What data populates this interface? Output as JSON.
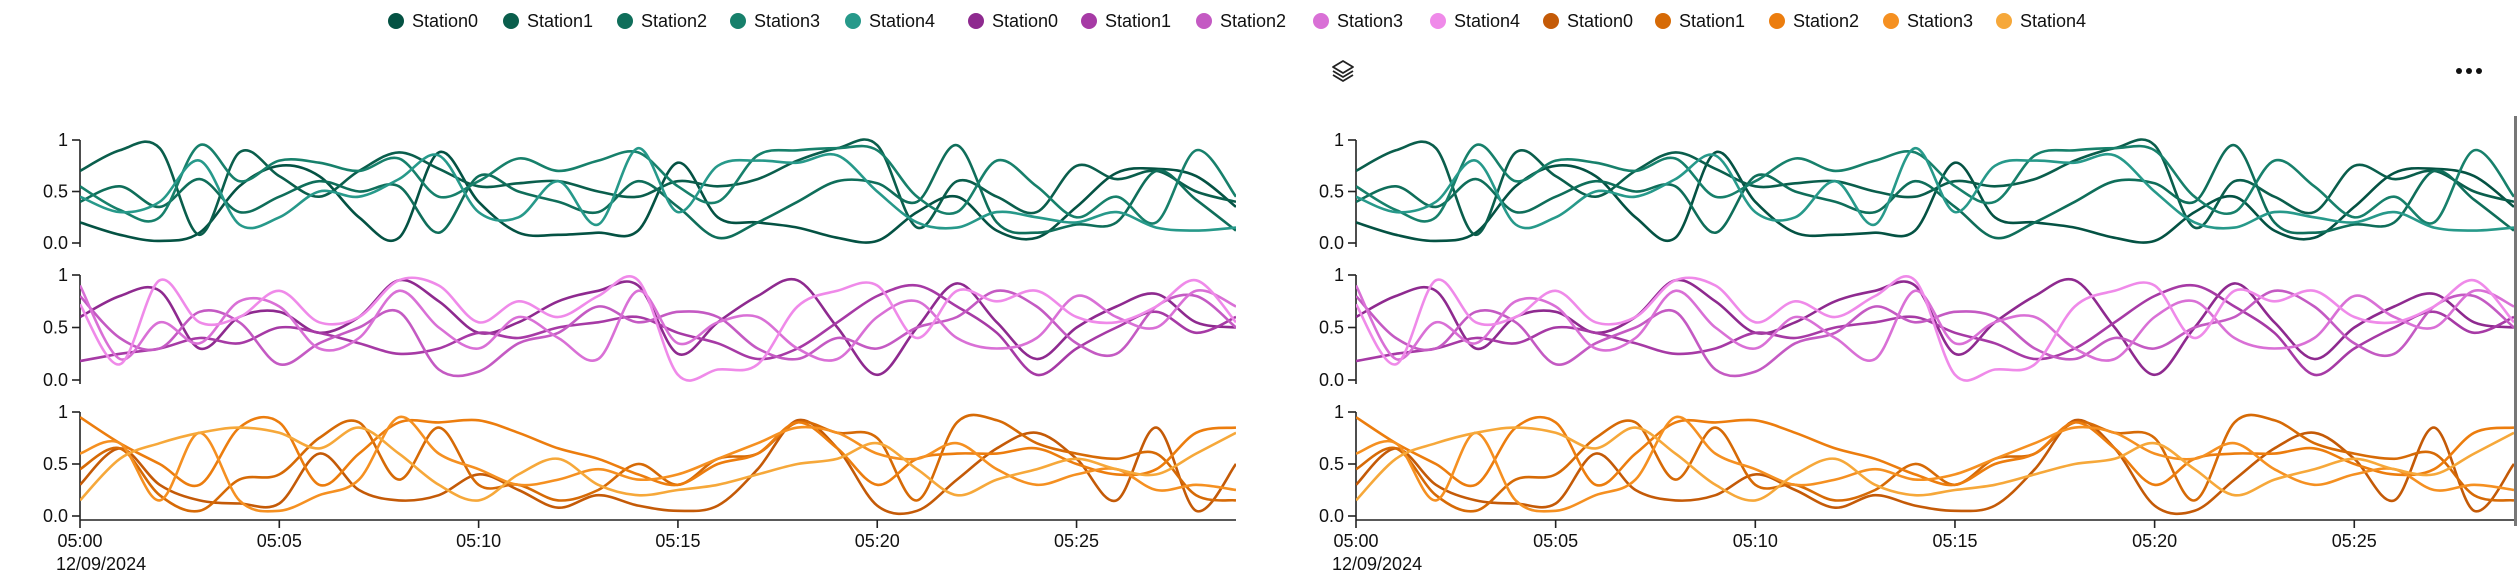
{
  "legend": {
    "groups": [
      {
        "items": [
          {
            "label": "Station0",
            "color": "#045243"
          },
          {
            "label": "Station1",
            "color": "#0a5e4c"
          },
          {
            "label": "Station2",
            "color": "#0f6e5a"
          },
          {
            "label": "Station3",
            "color": "#17806b"
          },
          {
            "label": "Station4",
            "color": "#27998a"
          }
        ]
      },
      {
        "items": [
          {
            "label": "Station0",
            "color": "#8e2a8f"
          },
          {
            "label": "Station1",
            "color": "#a63aa5"
          },
          {
            "label": "Station2",
            "color": "#c45ac3"
          },
          {
            "label": "Station3",
            "color": "#d970d6"
          },
          {
            "label": "Station4",
            "color": "#ef8ae9"
          }
        ]
      },
      {
        "items": [
          {
            "label": "Station0",
            "color": "#c45a07"
          },
          {
            "label": "Station1",
            "color": "#d66a06"
          },
          {
            "label": "Station2",
            "color": "#ec7d0e"
          },
          {
            "label": "Station3",
            "color": "#f59021"
          },
          {
            "label": "Station4",
            "color": "#f6a83a"
          }
        ]
      }
    ]
  },
  "icons": {
    "layers": "layers-icon",
    "more": "more-horizontal-icon"
  },
  "chart_data": {
    "type": "line",
    "x": [
      "05:00",
      "05:01",
      "05:02",
      "05:03",
      "05:04",
      "05:05",
      "05:06",
      "05:07",
      "05:08",
      "05:09",
      "05:10",
      "05:11",
      "05:12",
      "05:13",
      "05:14",
      "05:15",
      "05:16",
      "05:17",
      "05:18",
      "05:19",
      "05:20",
      "05:21",
      "05:22",
      "05:23",
      "05:24",
      "05:25",
      "05:26",
      "05:27",
      "05:28",
      "05:29"
    ],
    "x_ticks": [
      "05:00",
      "05:05",
      "05:10",
      "05:15",
      "05:20",
      "05:25"
    ],
    "x_date_label": "12/09/2024",
    "y_ticks": [
      "0.0",
      "0.5",
      "1"
    ],
    "ylim": [
      0,
      1
    ],
    "grid": false,
    "panels": [
      {
        "series": [
          {
            "name": "Station0",
            "color": "#045243",
            "values": [
              0.2,
              0.08,
              0.02,
              0.1,
              0.55,
              0.75,
              0.65,
              0.25,
              0.05,
              0.88,
              0.4,
              0.1,
              0.08,
              0.1,
              0.12,
              0.78,
              0.25,
              0.2,
              0.15,
              0.05,
              0.02,
              0.3,
              0.45,
              0.12,
              0.05,
              0.35,
              0.68,
              0.72,
              0.65,
              0.35
            ]
          },
          {
            "name": "Station1",
            "color": "#0a5e4c",
            "values": [
              0.7,
              0.9,
              0.92,
              0.08,
              0.88,
              0.65,
              0.45,
              0.7,
              0.88,
              0.72,
              0.55,
              0.58,
              0.6,
              0.5,
              0.45,
              0.6,
              0.55,
              0.62,
              0.8,
              0.92,
              0.95,
              0.15,
              0.6,
              0.45,
              0.3,
              0.75,
              0.62,
              0.7,
              0.5,
              0.4
            ]
          },
          {
            "name": "Station2",
            "color": "#0f6e5a",
            "values": [
              0.4,
              0.55,
              0.35,
              0.62,
              0.3,
              0.45,
              0.6,
              0.5,
              0.55,
              0.1,
              0.65,
              0.5,
              0.4,
              0.3,
              0.6,
              0.35,
              0.05,
              0.2,
              0.4,
              0.6,
              0.58,
              0.4,
              0.95,
              0.2,
              0.1,
              0.18,
              0.2,
              0.7,
              0.42,
              0.12
            ]
          },
          {
            "name": "Station3",
            "color": "#17806b",
            "values": [
              0.55,
              0.32,
              0.25,
              0.95,
              0.6,
              0.8,
              0.78,
              0.7,
              0.82,
              0.45,
              0.6,
              0.82,
              0.7,
              0.8,
              0.88,
              0.55,
              0.4,
              0.85,
              0.9,
              0.92,
              0.9,
              0.45,
              0.3,
              0.8,
              0.55,
              0.25,
              0.45,
              0.2,
              0.9,
              0.45
            ]
          },
          {
            "name": "Station4",
            "color": "#27998a",
            "values": [
              0.45,
              0.3,
              0.4,
              0.8,
              0.18,
              0.25,
              0.5,
              0.45,
              0.62,
              0.85,
              0.3,
              0.25,
              0.6,
              0.18,
              0.92,
              0.3,
              0.75,
              0.8,
              0.78,
              0.85,
              0.5,
              0.2,
              0.15,
              0.3,
              0.25,
              0.2,
              0.3,
              0.15,
              0.12,
              0.15
            ]
          }
        ]
      },
      {
        "series": [
          {
            "name": "Station0",
            "color": "#8e2a8f",
            "values": [
              0.6,
              0.8,
              0.85,
              0.3,
              0.6,
              0.65,
              0.45,
              0.6,
              0.95,
              0.75,
              0.45,
              0.55,
              0.75,
              0.85,
              0.9,
              0.25,
              0.55,
              0.8,
              0.95,
              0.5,
              0.05,
              0.5,
              0.92,
              0.55,
              0.2,
              0.5,
              0.7,
              0.82,
              0.55,
              0.5
            ]
          },
          {
            "name": "Station1",
            "color": "#a63aa5",
            "values": [
              0.18,
              0.25,
              0.3,
              0.4,
              0.35,
              0.5,
              0.45,
              0.35,
              0.25,
              0.3,
              0.45,
              0.4,
              0.5,
              0.55,
              0.6,
              0.45,
              0.35,
              0.2,
              0.3,
              0.55,
              0.8,
              0.9,
              0.7,
              0.45,
              0.05,
              0.3,
              0.5,
              0.65,
              0.45,
              0.6
            ]
          },
          {
            "name": "Station2",
            "color": "#c45ac3",
            "values": [
              0.8,
              0.4,
              0.3,
              0.65,
              0.55,
              0.15,
              0.35,
              0.5,
              0.65,
              0.1,
              0.08,
              0.35,
              0.45,
              0.7,
              0.55,
              0.65,
              0.6,
              0.3,
              0.2,
              0.4,
              0.3,
              0.5,
              0.6,
              0.85,
              0.7,
              0.35,
              0.25,
              0.7,
              0.8,
              0.5
            ]
          },
          {
            "name": "Station3",
            "color": "#d970d6",
            "values": [
              0.9,
              0.2,
              0.55,
              0.35,
              0.75,
              0.7,
              0.3,
              0.4,
              0.85,
              0.5,
              0.3,
              0.6,
              0.4,
              0.2,
              0.85,
              0.35,
              0.55,
              0.6,
              0.3,
              0.2,
              0.6,
              0.75,
              0.4,
              0.3,
              0.4,
              0.8,
              0.6,
              0.5,
              0.85,
              0.7
            ]
          },
          {
            "name": "Station4",
            "color": "#ef8ae9",
            "values": [
              0.72,
              0.15,
              0.95,
              0.55,
              0.6,
              0.85,
              0.55,
              0.6,
              0.95,
              0.9,
              0.55,
              0.75,
              0.6,
              0.8,
              0.95,
              0.05,
              0.1,
              0.15,
              0.7,
              0.85,
              0.9,
              0.4,
              0.85,
              0.75,
              0.85,
              0.6,
              0.55,
              0.7,
              0.95,
              0.55
            ]
          }
        ]
      },
      {
        "series": [
          {
            "name": "Station0",
            "color": "#c45a07",
            "values": [
              0.3,
              0.65,
              0.3,
              0.15,
              0.12,
              0.12,
              0.6,
              0.25,
              0.15,
              0.2,
              0.4,
              0.25,
              0.08,
              0.2,
              0.1,
              0.05,
              0.1,
              0.45,
              0.92,
              0.65,
              0.1,
              0.05,
              0.35,
              0.65,
              0.8,
              0.55,
              0.15,
              0.85,
              0.05,
              0.5
            ]
          },
          {
            "name": "Station1",
            "color": "#d66a06",
            "values": [
              0.45,
              0.65,
              0.2,
              0.05,
              0.35,
              0.4,
              0.75,
              0.9,
              0.35,
              0.85,
              0.3,
              0.3,
              0.15,
              0.25,
              0.5,
              0.3,
              0.55,
              0.6,
              0.9,
              0.8,
              0.75,
              0.15,
              0.9,
              0.92,
              0.7,
              0.6,
              0.55,
              0.6,
              0.2,
              0.15
            ]
          },
          {
            "name": "Station2",
            "color": "#ec7d0e",
            "values": [
              0.95,
              0.7,
              0.5,
              0.3,
              0.85,
              0.9,
              0.3,
              0.6,
              0.9,
              0.9,
              0.92,
              0.8,
              0.65,
              0.55,
              0.4,
              0.3,
              0.5,
              0.6,
              0.9,
              0.65,
              0.3,
              0.55,
              0.6,
              0.6,
              0.65,
              0.5,
              0.4,
              0.45,
              0.8,
              0.85
            ]
          },
          {
            "name": "Station3",
            "color": "#f59021",
            "values": [
              0.6,
              0.7,
              0.15,
              0.8,
              0.15,
              0.05,
              0.2,
              0.35,
              0.95,
              0.6,
              0.45,
              0.3,
              0.35,
              0.45,
              0.35,
              0.4,
              0.55,
              0.7,
              0.85,
              0.8,
              0.6,
              0.55,
              0.7,
              0.45,
              0.3,
              0.4,
              0.45,
              0.25,
              0.3,
              0.25
            ]
          },
          {
            "name": "Station4",
            "color": "#f6a83a",
            "values": [
              0.15,
              0.55,
              0.7,
              0.8,
              0.85,
              0.8,
              0.65,
              0.85,
              0.6,
              0.3,
              0.15,
              0.4,
              0.55,
              0.3,
              0.2,
              0.25,
              0.3,
              0.4,
              0.5,
              0.55,
              0.7,
              0.45,
              0.2,
              0.35,
              0.45,
              0.55,
              0.45,
              0.4,
              0.6,
              0.8
            ]
          }
        ]
      }
    ]
  }
}
